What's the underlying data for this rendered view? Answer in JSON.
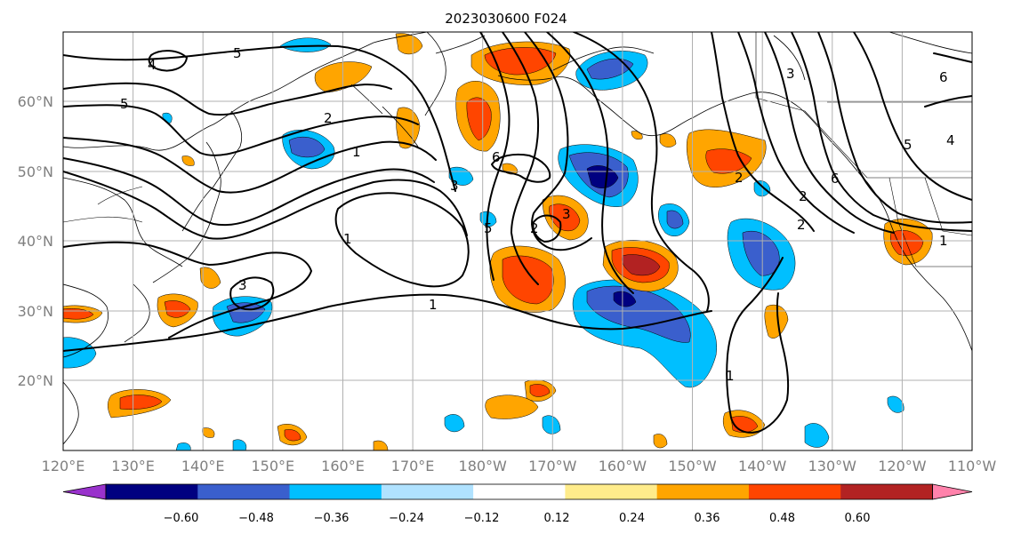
{
  "title": "2023030600 F024",
  "lat_labels": [
    "60°N",
    "50°N",
    "40°N",
    "30°N",
    "20°N"
  ],
  "lon_labels": [
    "120°E",
    "130°E",
    "140°E",
    "150°E",
    "160°E",
    "170°E",
    "180°W",
    "170°W",
    "160°W",
    "150°W",
    "140°W",
    "130°W",
    "120°W",
    "110°W"
  ],
  "colorbar": {
    "colors": [
      "#9932cc",
      "#000080",
      "#3a5fcd",
      "#00bfff",
      "#b0e2ff",
      "#ffffff",
      "#ffec8b",
      "#ffa500",
      "#ff4500",
      "#b22222",
      "#ff82ab"
    ],
    "ticks": [
      "−0.60",
      "−0.48",
      "−0.36",
      "−0.24",
      "−0.12",
      "0.12",
      "0.24",
      "0.36",
      "0.48",
      "0.60"
    ]
  },
  "contour_labels": [
    "5",
    "4",
    "5",
    "1",
    "1",
    "3",
    "2",
    "6",
    "3",
    "5",
    "2",
    "3",
    "1",
    "1",
    "2",
    "6",
    "2",
    "3",
    "6",
    "5",
    "4",
    "1",
    "2"
  ]
}
